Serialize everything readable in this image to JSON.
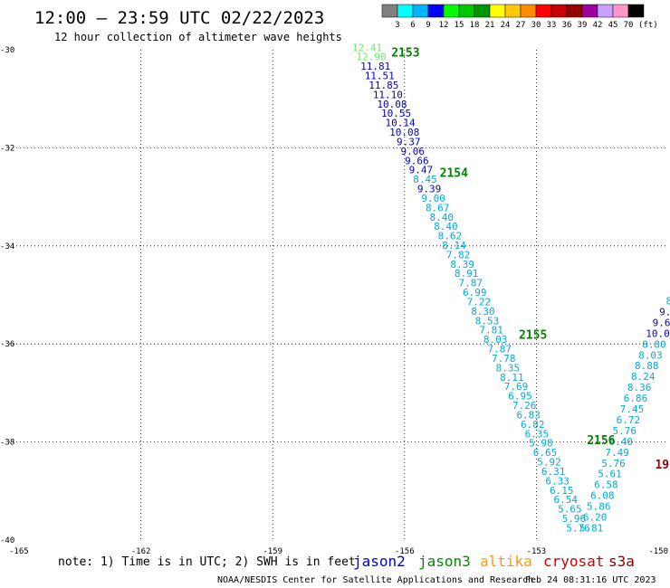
{
  "header": {
    "title": "12:00 – 23:59 UTC 02/22/2023",
    "subtitle": "12 hour collection of altimeter wave heights"
  },
  "color_scale": {
    "unit": "(ft)",
    "labels": [
      "3",
      "6",
      "9",
      "12",
      "15",
      "18",
      "21",
      "24",
      "27",
      "30",
      "33",
      "36",
      "39",
      "42",
      "45",
      "70"
    ],
    "colors": [
      "#808080",
      "#00ffff",
      "#00b4ff",
      "#0000ff",
      "#00ff00",
      "#00c800",
      "#009600",
      "#ffff00",
      "#ffc800",
      "#ff8c00",
      "#ff0000",
      "#c80000",
      "#960000",
      "#a000a0",
      "#c8a0ff",
      "#ff96c8",
      "#000000"
    ]
  },
  "map": {
    "lon_ticks": [
      "-165",
      "-162",
      "-159",
      "-156",
      "-153",
      "-150"
    ],
    "lat_ticks": [
      "-30",
      "-32",
      "-34",
      "-36",
      "-38",
      "-40"
    ]
  },
  "chart_data": {
    "type": "scatter",
    "title": "12:00 – 23:59 UTC 02/22/2023",
    "xlim": [
      -165,
      -150
    ],
    "ylim": [
      -40,
      -30
    ],
    "track_a_values": [
      {
        "v": "12.41",
        "c": "#66ee66"
      },
      {
        "v": "12.90",
        "c": "#66ee66"
      },
      {
        "v": "11.81",
        "c": "#0000c8"
      },
      {
        "v": "11.51",
        "c": "#0000c8"
      },
      {
        "v": "11.85",
        "c": "#0000c8"
      },
      {
        "v": "11.10",
        "c": "#0000c8"
      },
      {
        "v": "10.08",
        "c": "#0000c8"
      },
      {
        "v": "10.55",
        "c": "#0000c8"
      },
      {
        "v": "10.14",
        "c": "#0000c8"
      },
      {
        "v": "10.08",
        "c": "#0000c8"
      },
      {
        "v": "9.37",
        "c": "#0000c8"
      },
      {
        "v": "9.06",
        "c": "#0000c8"
      },
      {
        "v": "9.66",
        "c": "#0000c8"
      },
      {
        "v": "9.47",
        "c": "#0000c8"
      },
      {
        "v": "8.45",
        "c": "#00aadd"
      },
      {
        "v": "9.39",
        "c": "#0000c8"
      },
      {
        "v": "9.00",
        "c": "#00aadd"
      },
      {
        "v": "8.67",
        "c": "#00aadd"
      },
      {
        "v": "8.40",
        "c": "#00aadd"
      },
      {
        "v": "8.40",
        "c": "#00aadd"
      },
      {
        "v": "8.62",
        "c": "#00aadd"
      },
      {
        "v": "8.14",
        "c": "#00aadd"
      },
      {
        "v": "7.82",
        "c": "#00aadd"
      },
      {
        "v": "8.39",
        "c": "#00aadd"
      },
      {
        "v": "8.91",
        "c": "#00aadd"
      },
      {
        "v": "7.87",
        "c": "#00aadd"
      },
      {
        "v": "6.99",
        "c": "#00aadd"
      },
      {
        "v": "7.22",
        "c": "#00aadd"
      },
      {
        "v": "8.30",
        "c": "#00aadd"
      },
      {
        "v": "8.53",
        "c": "#00aadd"
      },
      {
        "v": "7.81",
        "c": "#00aadd"
      },
      {
        "v": "8.03",
        "c": "#00aadd"
      },
      {
        "v": "7.87",
        "c": "#00aadd"
      },
      {
        "v": "7.78",
        "c": "#00aadd"
      },
      {
        "v": "8.35",
        "c": "#00aadd"
      },
      {
        "v": "8.11",
        "c": "#00aadd"
      },
      {
        "v": "7.69",
        "c": "#00aadd"
      },
      {
        "v": "6.95",
        "c": "#00aadd"
      },
      {
        "v": "7.26",
        "c": "#00aadd"
      },
      {
        "v": "6.83",
        "c": "#00aadd"
      },
      {
        "v": "6.82",
        "c": "#00aadd"
      },
      {
        "v": "6.35",
        "c": "#00aadd"
      },
      {
        "v": "5.98",
        "c": "#00aadd"
      },
      {
        "v": "6.65",
        "c": "#00aadd"
      },
      {
        "v": "5.92",
        "c": "#00aadd"
      },
      {
        "v": "6.31",
        "c": "#00aadd"
      },
      {
        "v": "6.33",
        "c": "#00aadd"
      },
      {
        "v": "6.15",
        "c": "#00aadd"
      },
      {
        "v": "6.54",
        "c": "#00aadd"
      },
      {
        "v": "5.65",
        "c": "#00aadd"
      },
      {
        "v": "5.96",
        "c": "#00aadd"
      },
      {
        "v": "5.76",
        "c": "#00aadd"
      }
    ],
    "track_b_values": [
      {
        "v": "8",
        "c": "#00aadd"
      },
      {
        "v": "8",
        "c": "#00aadd"
      },
      {
        "v": "9.",
        "c": "#0000c8"
      },
      {
        "v": "9.6",
        "c": "#0000c8"
      },
      {
        "v": "10.0",
        "c": "#0000c8"
      },
      {
        "v": "8.80",
        "c": "#00aadd"
      },
      {
        "v": "8.03",
        "c": "#00aadd"
      },
      {
        "v": "8.88",
        "c": "#00aadd"
      },
      {
        "v": "8.24",
        "c": "#00aadd"
      },
      {
        "v": "8.36",
        "c": "#00aadd"
      },
      {
        "v": "6.86",
        "c": "#00aadd"
      },
      {
        "v": "7.45",
        "c": "#00aadd"
      },
      {
        "v": "6.72",
        "c": "#00aadd"
      },
      {
        "v": "5.76",
        "c": "#00aadd"
      },
      {
        "v": "6.40",
        "c": "#00aadd"
      },
      {
        "v": "7.49",
        "c": "#00aadd"
      },
      {
        "v": "5.76",
        "c": "#00aadd"
      },
      {
        "v": "5.61",
        "c": "#00aadd"
      },
      {
        "v": "6.58",
        "c": "#00aadd"
      },
      {
        "v": "6.08",
        "c": "#00aadd"
      },
      {
        "v": "5.86",
        "c": "#00aadd"
      },
      {
        "v": "6.20",
        "c": "#00aadd"
      },
      {
        "v": "5.81",
        "c": "#00aadd"
      }
    ],
    "time_labels": [
      {
        "t": "2153",
        "c": "#008000"
      },
      {
        "t": "2154",
        "c": "#008000"
      },
      {
        "t": "2155",
        "c": "#008000"
      },
      {
        "t": "2156",
        "c": "#008000"
      },
      {
        "t": "19",
        "c": "#a00000"
      }
    ]
  },
  "legend": {
    "note": "note: 1) Time is in UTC; 2) SWH is in feet",
    "satellites": [
      {
        "name": "jason2",
        "color": "#0000cc"
      },
      {
        "name": "jason3",
        "color": "#008800"
      },
      {
        "name": "altika",
        "color": "#ff9900"
      },
      {
        "name": "cryosat",
        "color": "#cc0000"
      },
      {
        "name": "s3a",
        "color": "#880000"
      }
    ]
  },
  "footer": {
    "credit": "NOAA/NESDIS Center for Satellite Applications and Research",
    "timestamp": "Feb 24 08:31:16 UTC 2023"
  }
}
